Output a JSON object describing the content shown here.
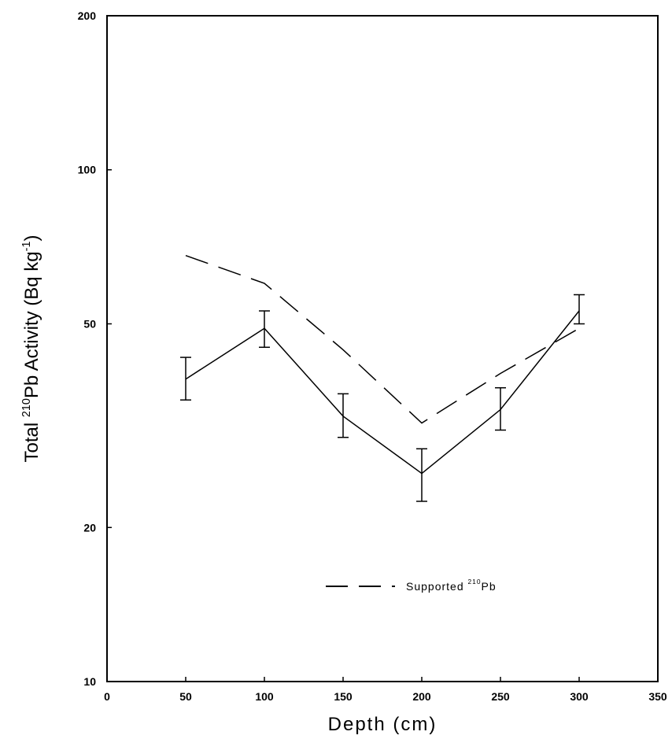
{
  "chart_data": {
    "type": "line",
    "yscale": "log",
    "xlim": [
      0,
      350
    ],
    "ylim": [
      10,
      200
    ],
    "x_ticks": [
      "0",
      "50",
      "100",
      "150",
      "200",
      "250",
      "300",
      "350"
    ],
    "y_ticks": [
      {
        "value": 10,
        "label": "10"
      },
      {
        "value": 20,
        "label": "20"
      },
      {
        "value": 50,
        "label": "50"
      },
      {
        "value": 100,
        "label": "100"
      },
      {
        "value": 200,
        "label": "200"
      }
    ],
    "xlabel": "Depth (cm)",
    "ylabel": {
      "pre": "Total ",
      "sup": "210",
      "mid": "Pb Activity (Bq kg",
      "sup2": "-1",
      "post": ")"
    },
    "grid": false,
    "series": [
      {
        "name": "",
        "style": "solid",
        "x": [
          50,
          100,
          150,
          200,
          250,
          300
        ],
        "y": [
          39,
          49,
          33,
          25.5,
          34,
          53
        ],
        "err_low": [
          35.5,
          45,
          30,
          22.5,
          31,
          50
        ],
        "err_high": [
          43,
          53,
          36.5,
          28.5,
          37.5,
          57
        ]
      },
      {
        "name": {
          "pre": "Supported ",
          "sup": "210",
          "post": "Pb"
        },
        "style": "dashed",
        "x": [
          50,
          100,
          150,
          200,
          250,
          300
        ],
        "y": [
          68,
          60,
          44.5,
          32,
          40,
          49
        ]
      }
    ],
    "legend": {
      "position": "bottom-center"
    }
  }
}
